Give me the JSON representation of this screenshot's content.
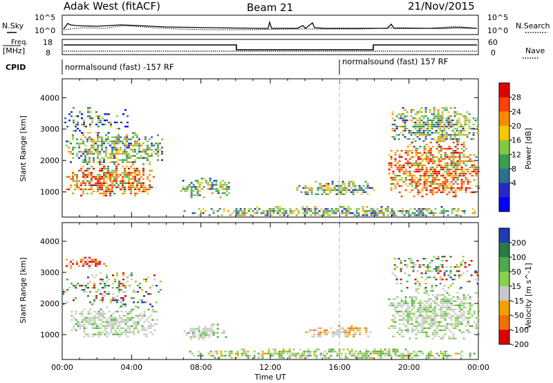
{
  "header": {
    "station": "Adak West (fitACF)",
    "beam": "Beam 21",
    "date": "21/Nov/2015"
  },
  "top_panels": {
    "nsky_label": "N.Sky",
    "nsky_ticks": [
      "10^5",
      "10^0"
    ],
    "nsearch_label": "N.Search",
    "nsearch_ticks": [
      "10^5",
      "10^0"
    ],
    "freq_label_1": "Freq.",
    "freq_label_2": "[MHz]",
    "freq_ticks": [
      "18",
      "8"
    ],
    "nave_label": "Nave",
    "nave_ticks": [
      "60",
      "0"
    ],
    "cpid_label": "CPID",
    "cpid_segments": [
      "normalsound (fast) -157 RF",
      "normalsound (fast) 157 RF"
    ]
  },
  "chart_data": [
    {
      "type": "heatmap",
      "panel": "power",
      "ylabel": "Slant Range [km]",
      "yticks": [
        1000,
        2000,
        3000,
        4000
      ],
      "ylim": [
        200,
        4600
      ],
      "xlim": [
        0,
        24
      ],
      "colorbar_label": "Power [dB]",
      "colorbar_ticks": [
        "28",
        "24",
        "20",
        "16",
        "12",
        "8",
        "4"
      ],
      "colorbar_colors": [
        "#e00000",
        "#ff4000",
        "#ff8a00",
        "#f5c800",
        "#86c940",
        "#3a9e52",
        "#2e6f8e",
        "#2828c8",
        "#0000ff"
      ],
      "regions": [
        {
          "t0": 0.2,
          "t1": 5.3,
          "r0": 850,
          "r1": 1900,
          "level": "high"
        },
        {
          "t0": 0.2,
          "t1": 5.8,
          "r0": 1900,
          "r1": 2900,
          "level": "mid"
        },
        {
          "t0": 0.0,
          "t1": 3.8,
          "r0": 2900,
          "r1": 3700,
          "level": "low"
        },
        {
          "t0": 6.8,
          "t1": 9.6,
          "r0": 850,
          "r1": 1450,
          "level": "mid"
        },
        {
          "t0": 7.0,
          "t1": 23.8,
          "r0": 250,
          "r1": 550,
          "level": "mid"
        },
        {
          "t0": 13.5,
          "t1": 18.0,
          "r0": 900,
          "r1": 1350,
          "level": "mid"
        },
        {
          "t0": 18.8,
          "t1": 24.0,
          "r0": 850,
          "r1": 2600,
          "level": "high"
        },
        {
          "t0": 19.0,
          "t1": 24.0,
          "r0": 2600,
          "r1": 3700,
          "level": "mid"
        }
      ]
    },
    {
      "type": "heatmap",
      "panel": "velocity",
      "ylabel": "Slant Range [km]",
      "yticks": [
        1000,
        2000,
        3000,
        4000
      ],
      "ylim": [
        200,
        4600
      ],
      "xlim": [
        0,
        24
      ],
      "xlabel": "Time UT",
      "xticks": [
        "00:00",
        "04:00",
        "08:00",
        "12:00",
        "16:00",
        "20:00",
        "00:00"
      ],
      "colorbar_label": "Velocity [m s^-1]",
      "colorbar_ticks": [
        "200",
        "100",
        "50",
        "15",
        "-15",
        "-50",
        "-100",
        "-200"
      ],
      "colorbar_colors": [
        "#1e3cb4",
        "#2a7a4a",
        "#4ea84e",
        "#86d24a",
        "#c8c8c8",
        "#f5a000",
        "#f07000",
        "#e00000"
      ],
      "regions": [
        {
          "t0": 0.5,
          "t1": 5.5,
          "r0": 900,
          "r1": 1900,
          "level": "gray"
        },
        {
          "t0": 0.0,
          "t1": 5.8,
          "r0": 1900,
          "r1": 3000,
          "level": "scatter"
        },
        {
          "t0": 0.2,
          "t1": 2.5,
          "r0": 3100,
          "r1": 3500,
          "level": "red"
        },
        {
          "t0": 7.0,
          "t1": 9.5,
          "r0": 850,
          "r1": 1350,
          "level": "gray"
        },
        {
          "t0": 7.2,
          "t1": 23.8,
          "r0": 250,
          "r1": 550,
          "level": "green"
        },
        {
          "t0": 14.0,
          "t1": 17.8,
          "r0": 900,
          "r1": 1300,
          "level": "gray-orange"
        },
        {
          "t0": 18.8,
          "t1": 24.0,
          "r0": 850,
          "r1": 2500,
          "level": "gray-green"
        },
        {
          "t0": 19.0,
          "t1": 24.0,
          "r0": 2500,
          "r1": 3600,
          "level": "scatter"
        }
      ]
    }
  ]
}
